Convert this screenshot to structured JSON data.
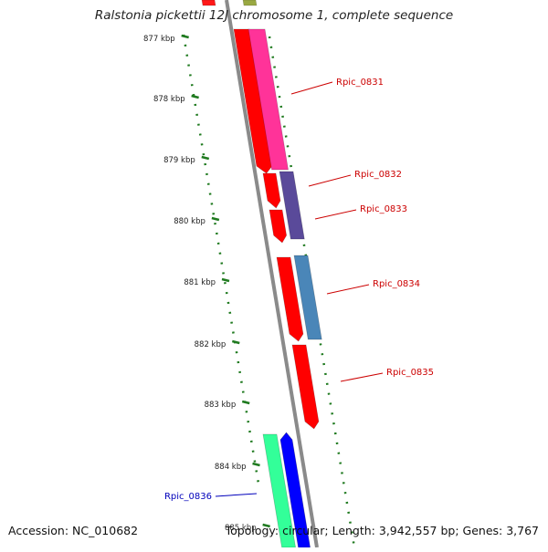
{
  "title": "Ralstonia pickettii 12J chromosome 1, complete sequence",
  "footer": {
    "accession": "Accession: NC_010682",
    "topology": "Topology: circular; Length: 3,942,557 bp; Genes: 3,767"
  },
  "ruler": {
    "unit": "kbp",
    "ticks": [
      "877 kbp",
      "878 kbp",
      "879 kbp",
      "880 kbp",
      "881 kbp",
      "882 kbp",
      "883 kbp",
      "884 kbp",
      "885 kbp"
    ]
  },
  "colors": {
    "backbone": "#8a8a8a",
    "ruler": "#1f7a1f",
    "label_red": "#cc0000",
    "label_blue": "#0000bb",
    "cds_red": "#ff0000",
    "magenta": "#ff3399",
    "purple": "#5a4a9a",
    "steel_blue": "#4a86b8",
    "aqua_green": "#33ff99",
    "blue": "#0000ff",
    "olive": "#889922"
  },
  "genes": [
    {
      "label": "Rpic_0831",
      "color_key": "label_red"
    },
    {
      "label": "Rpic_0832",
      "color_key": "label_red"
    },
    {
      "label": "Rpic_0833",
      "color_key": "label_red"
    },
    {
      "label": "Rpic_0834",
      "color_key": "label_red"
    },
    {
      "label": "Rpic_0835",
      "color_key": "label_red"
    },
    {
      "label": "Rpic_0836",
      "color_key": "label_blue"
    }
  ]
}
